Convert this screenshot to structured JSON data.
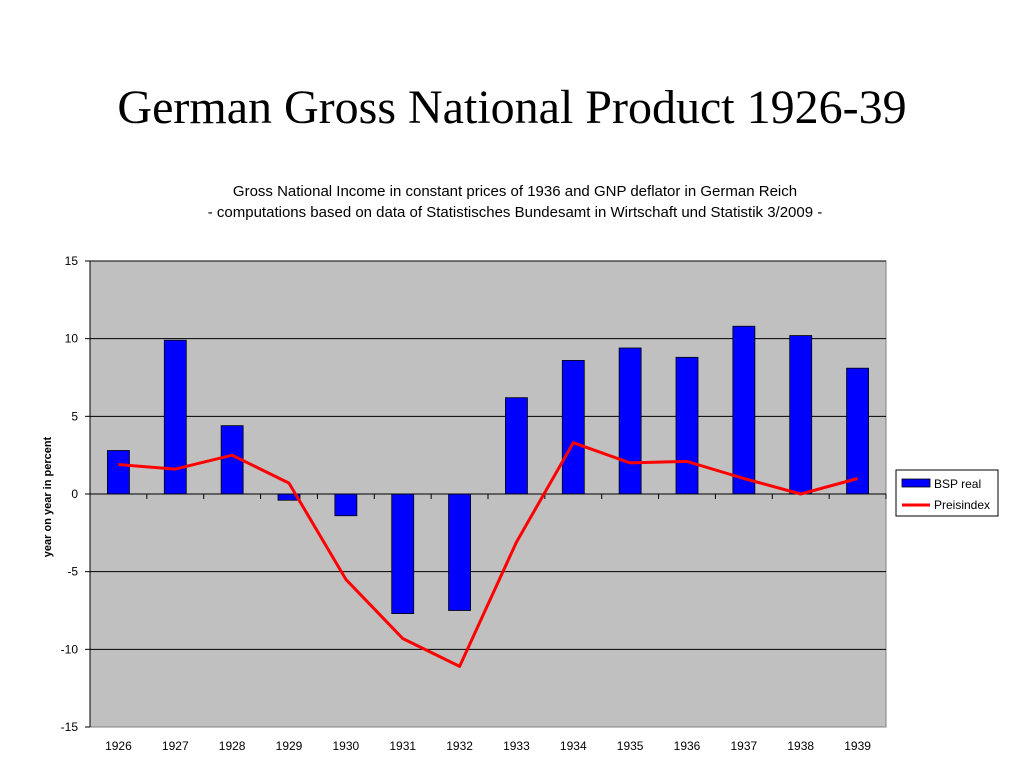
{
  "slide": {
    "title": "German Gross National Product 1926-39"
  },
  "colors": {
    "plot_background": "#c0c0c0",
    "bar_fill": "#0000ff",
    "line_stroke": "#ff0000",
    "gridline": "#000000"
  },
  "chart_data": {
    "type": "bar",
    "title": "Gross National Income in constant prices of 1936 and GNP deflator in German Reich",
    "subtitle": "- computations based on data of Statistisches Bundesamt in Wirtschaft und Statistik 3/2009 -",
    "xlabel": "",
    "ylabel": "year on year in percent",
    "ylim": [
      -15,
      15
    ],
    "yticks": [
      15,
      10,
      5,
      0,
      -5,
      -10,
      -15
    ],
    "grid": true,
    "legend_position": "right",
    "categories": [
      "1926",
      "1927",
      "1928",
      "1929",
      "1930",
      "1931",
      "1932",
      "1933",
      "1934",
      "1935",
      "1936",
      "1937",
      "1938",
      "1939"
    ],
    "series": [
      {
        "name": "BSP real",
        "type": "bar",
        "values": [
          2.8,
          9.9,
          4.4,
          -0.4,
          -1.4,
          -7.7,
          -7.5,
          6.2,
          8.6,
          9.4,
          8.8,
          10.8,
          10.2,
          8.1
        ]
      },
      {
        "name": "Preisindex",
        "type": "line",
        "values": [
          1.9,
          1.6,
          2.5,
          0.7,
          -5.5,
          -9.3,
          -11.1,
          -3.1,
          3.3,
          2.0,
          2.1,
          1.0,
          0.0,
          1.0
        ]
      }
    ]
  }
}
